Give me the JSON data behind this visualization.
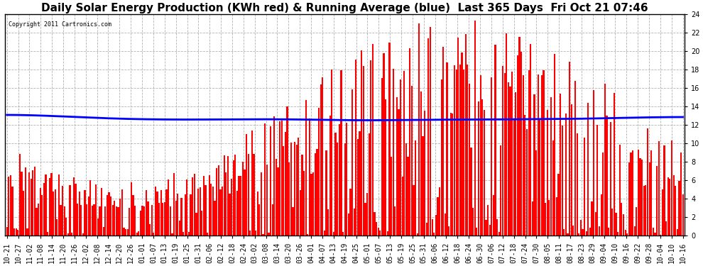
{
  "title": "Daily Solar Energy Production (KWh red) & Running Average (blue)  Last 365 Days  Fri Oct 21 07:46",
  "copyright_text": "Copyright 2011 Cartronics.com",
  "bar_color": "#ff0000",
  "line_color": "#0000ff",
  "background_color": "#ffffff",
  "grid_color": "#aaaaaa",
  "ylim": [
    0.0,
    24.0
  ],
  "yticks": [
    0.0,
    2.0,
    4.0,
    6.0,
    8.0,
    10.0,
    12.0,
    14.0,
    16.0,
    18.0,
    20.0,
    22.0,
    24.0
  ],
  "x_labels": [
    "10-21",
    "10-27",
    "11-02",
    "11-08",
    "11-14",
    "11-20",
    "11-26",
    "12-02",
    "12-08",
    "12-14",
    "12-20",
    "12-26",
    "01-01",
    "01-07",
    "01-13",
    "01-19",
    "01-25",
    "01-31",
    "02-06",
    "02-12",
    "02-18",
    "02-24",
    "03-02",
    "03-08",
    "03-14",
    "03-20",
    "03-26",
    "04-01",
    "04-07",
    "04-13",
    "04-19",
    "04-25",
    "05-01",
    "05-07",
    "05-13",
    "05-19",
    "05-25",
    "05-31",
    "06-06",
    "06-12",
    "06-18",
    "06-24",
    "06-30",
    "07-06",
    "07-12",
    "07-18",
    "07-24",
    "07-30",
    "08-05",
    "08-11",
    "08-17",
    "08-23",
    "08-29",
    "09-04",
    "09-10",
    "09-16",
    "09-22",
    "09-28",
    "10-04",
    "10-10",
    "10-16"
  ],
  "title_fontsize": 11,
  "tick_fontsize": 7.0,
  "line_width": 2.0,
  "blue_line_y": [
    13.2,
    13.15,
    13.1,
    13.05,
    13.0,
    12.95,
    12.9,
    12.85,
    12.75,
    12.7,
    12.68,
    12.65,
    12.63,
    12.6,
    12.6,
    12.58,
    12.58,
    12.6,
    12.6,
    12.62,
    12.62,
    12.63,
    12.65,
    12.65,
    12.65,
    12.63,
    12.62,
    12.6,
    12.58,
    12.55,
    12.53,
    12.5,
    12.5,
    12.5,
    12.52,
    12.55,
    12.58,
    12.6,
    12.6,
    12.6,
    12.6,
    12.58,
    12.58,
    12.6,
    12.62,
    12.65,
    12.65,
    12.65,
    12.65,
    12.65,
    12.65,
    12.68,
    12.7,
    12.75,
    12.78,
    12.8,
    12.82,
    12.85,
    12.88,
    12.9,
    12.9
  ]
}
